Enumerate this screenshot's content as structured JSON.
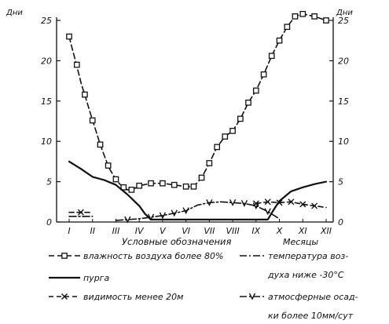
{
  "chart_data": {
    "type": "line",
    "ylabel": "Дни",
    "xlabel": "Месяцы",
    "ylim": [
      0,
      25
    ],
    "yticks": [
      0,
      5,
      10,
      15,
      20,
      25
    ],
    "categories": [
      "I",
      "II",
      "III",
      "IV",
      "V",
      "VI",
      "VII",
      "VIII",
      "IX",
      "X",
      "XI",
      "XII"
    ],
    "legend_title": "Условные обозначения",
    "grid": false,
    "series": [
      {
        "name": "влажность воздуха более 80%",
        "style": "dash-square",
        "x": [
          1.0,
          1.13,
          1.27,
          1.4,
          1.53,
          1.67,
          1.8,
          1.93,
          2.07,
          2.2,
          2.33,
          2.47,
          2.6,
          2.73,
          2.87,
          3.0,
          3.17,
          3.33,
          3.5,
          3.67,
          3.83,
          4.0,
          4.5,
          5.0,
          5.5,
          6.0,
          6.33,
          6.67,
          7.0,
          7.33,
          7.67,
          8.0,
          8.33,
          8.67,
          9.0,
          9.33,
          9.67,
          10.0,
          10.33,
          10.67,
          11.0,
          11.5,
          12.0
        ],
        "y": [
          23.0,
          21.5,
          20.0,
          18.5,
          17.0,
          15.8,
          14.5,
          13.3,
          12.0,
          10.8,
          9.6,
          8.5,
          7.5,
          6.6,
          5.9,
          5.3,
          4.7,
          4.3,
          4.0,
          4.0,
          4.2,
          4.5,
          4.8,
          4.8,
          4.6,
          4.4,
          4.4,
          5.5,
          7.3,
          9.3,
          10.6,
          11.3,
          12.8,
          14.8,
          16.3,
          18.3,
          20.6,
          22.5,
          24.2,
          25.5,
          25.8,
          25.5,
          25.0
        ],
        "marker_x": [
          1.0,
          1.33,
          1.67,
          2.0,
          2.33,
          2.67,
          3.0,
          3.33,
          3.67,
          4.0,
          4.5,
          5.0,
          5.5,
          6.0,
          6.33,
          6.67,
          7.0,
          7.33,
          7.67,
          8.0,
          8.33,
          8.67,
          9.0,
          9.33,
          9.67,
          10.0,
          10.33,
          10.67,
          11.0,
          11.5,
          12.0
        ],
        "marker_y": [
          23.0,
          19.5,
          15.8,
          12.6,
          9.6,
          7.0,
          5.3,
          4.3,
          4.0,
          4.5,
          4.8,
          4.8,
          4.6,
          4.4,
          4.4,
          5.5,
          7.3,
          9.3,
          10.6,
          11.3,
          12.8,
          14.8,
          16.3,
          18.3,
          20.6,
          22.5,
          24.2,
          25.5,
          25.8,
          25.5,
          25.0
        ]
      },
      {
        "name": "пурга",
        "style": "solid",
        "x": [
          1.0,
          1.5,
          2.0,
          2.5,
          3.0,
          3.5,
          4.0,
          4.25,
          4.5,
          9.5,
          9.75,
          10.0,
          10.5,
          11.0,
          11.5,
          12.0
        ],
        "y": [
          7.5,
          6.6,
          5.6,
          5.2,
          4.6,
          3.4,
          2.0,
          1.0,
          0.3,
          0.3,
          1.5,
          2.6,
          3.8,
          4.3,
          4.7,
          5.0
        ]
      },
      {
        "name": "видимость менее 20м",
        "style": "dash-x",
        "x": [
          1.0,
          1.5,
          2.0
        ],
        "y": [
          1.2,
          1.2,
          1.2
        ],
        "x2": [
          9.0,
          9.5,
          10.0,
          10.5,
          11.0,
          11.5,
          12.0
        ],
        "y2": [
          2.3,
          2.5,
          2.4,
          2.5,
          2.2,
          2.0,
          1.8
        ],
        "marker_x": [
          1.5,
          9.0,
          9.5,
          10.0,
          10.5,
          11.0,
          11.5
        ],
        "marker_y": [
          1.2,
          2.3,
          2.5,
          2.4,
          2.5,
          2.2,
          2.0
        ]
      },
      {
        "name": "температура воздуха ниже -30°C",
        "legend_lines": [
          "температура воз-",
          "духа ниже -30°C"
        ],
        "style": "dash-dot",
        "x": [
          1.0,
          2.0
        ],
        "y": [
          0.7,
          0.7
        ]
      },
      {
        "name": "атмосферные осадки более 10мм/сут",
        "legend_lines": [
          "атмосферные осад-",
          "ки более 10мм/сут"
        ],
        "style": "dashdot-v",
        "x": [
          3.0,
          3.5,
          4.0,
          4.5,
          5.0,
          5.5,
          6.0,
          6.5,
          7.0,
          7.5,
          8.0,
          8.5,
          9.0,
          9.5,
          10.0
        ],
        "y": [
          0.2,
          0.3,
          0.4,
          0.6,
          0.8,
          1.1,
          1.4,
          2.1,
          2.4,
          2.5,
          2.4,
          2.3,
          2.0,
          1.3,
          0.4
        ],
        "marker_x": [
          3.5,
          4.5,
          5.0,
          5.5,
          6.0,
          7.0,
          8.0,
          8.5,
          9.0,
          9.5
        ],
        "marker_y": [
          0.3,
          0.6,
          0.8,
          1.1,
          1.4,
          2.4,
          2.4,
          2.3,
          2.0,
          1.3
        ]
      }
    ]
  }
}
